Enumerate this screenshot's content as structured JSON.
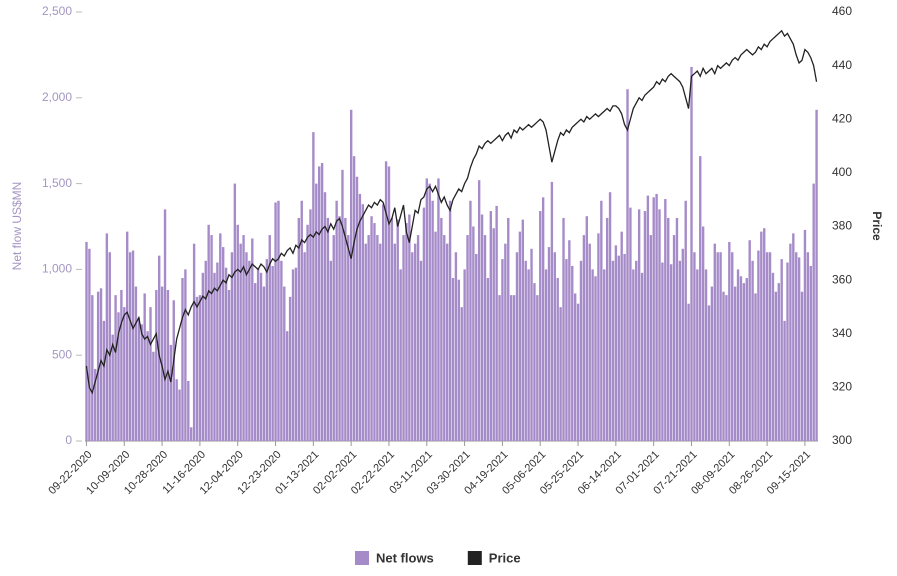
{
  "chart_data": {
    "type": "bar",
    "y_label": "Net flow US$MN",
    "y2_label": "Price",
    "ylim": [
      0,
      2500
    ],
    "yticks": [
      0,
      500,
      {
        "value": 1000,
        "label": "1,000"
      },
      {
        "value": 1500,
        "label": "1,500"
      },
      {
        "value": 2000,
        "label": "2,000"
      },
      {
        "value": 2500,
        "label": "2,500"
      }
    ],
    "y2lim": [
      300,
      460
    ],
    "y2ticks": [
      300,
      320,
      340,
      360,
      380,
      400,
      420,
      440,
      460
    ],
    "legend": "bottom",
    "categories": [
      "09-22-2020",
      null,
      null,
      null,
      null,
      null,
      null,
      null,
      null,
      null,
      null,
      null,
      null,
      "10-09-2020",
      null,
      null,
      null,
      null,
      null,
      null,
      null,
      null,
      null,
      null,
      null,
      null,
      "10-28-2020",
      null,
      null,
      null,
      null,
      null,
      null,
      null,
      null,
      null,
      null,
      null,
      null,
      "11-16-2020",
      null,
      null,
      null,
      null,
      null,
      null,
      null,
      null,
      null,
      null,
      null,
      null,
      "12-04-2020",
      null,
      null,
      null,
      null,
      null,
      null,
      null,
      null,
      null,
      null,
      null,
      null,
      "12-23-2020",
      null,
      null,
      null,
      null,
      null,
      null,
      null,
      null,
      null,
      null,
      null,
      null,
      "01-13-2021",
      null,
      null,
      null,
      null,
      null,
      null,
      null,
      null,
      null,
      null,
      null,
      null,
      "02-02-2021",
      null,
      null,
      null,
      null,
      null,
      null,
      null,
      null,
      null,
      null,
      null,
      null,
      "02-22-2021",
      null,
      null,
      null,
      null,
      null,
      null,
      null,
      null,
      null,
      null,
      null,
      null,
      "03-11-2021",
      null,
      null,
      null,
      null,
      null,
      null,
      null,
      null,
      null,
      null,
      null,
      null,
      "03-30-2021",
      null,
      null,
      null,
      null,
      null,
      null,
      null,
      null,
      null,
      null,
      null,
      null,
      "04-19-2021",
      null,
      null,
      null,
      null,
      null,
      null,
      null,
      null,
      null,
      null,
      null,
      null,
      "05-06-2021",
      null,
      null,
      null,
      null,
      null,
      null,
      null,
      null,
      null,
      null,
      null,
      null,
      "05-25-2021",
      null,
      null,
      null,
      null,
      null,
      null,
      null,
      null,
      null,
      null,
      null,
      null,
      "06-14-2021",
      null,
      null,
      null,
      null,
      null,
      null,
      null,
      null,
      null,
      null,
      null,
      null,
      "07-01-2021",
      null,
      null,
      null,
      null,
      null,
      null,
      null,
      null,
      null,
      null,
      null,
      null,
      "07-21-2021",
      null,
      null,
      null,
      null,
      null,
      null,
      null,
      null,
      null,
      null,
      null,
      null,
      "08-09-2021",
      null,
      null,
      null,
      null,
      null,
      null,
      null,
      null,
      null,
      null,
      null,
      null,
      "08-26-2021",
      null,
      null,
      null,
      null,
      null,
      null,
      null,
      null,
      null,
      null,
      null,
      null,
      "09-15-2021",
      null,
      null,
      null,
      null
    ],
    "series": [
      {
        "name": "Net flows",
        "type": "bar",
        "color": "#a68bc9",
        "axis": "y",
        "values": [
          1160,
          1120,
          850,
          420,
          870,
          890,
          700,
          1210,
          1100,
          620,
          850,
          750,
          880,
          780,
          1220,
          1100,
          1110,
          900,
          720,
          680,
          860,
          640,
          780,
          520,
          880,
          1080,
          900,
          1350,
          880,
          560,
          820,
          360,
          300,
          950,
          1000,
          350,
          80,
          1150,
          840,
          850,
          980,
          1050,
          1260,
          1200,
          980,
          1040,
          1210,
          1130,
          1010,
          880,
          1100,
          1500,
          1260,
          1150,
          1200,
          1100,
          1050,
          1180,
          920,
          1000,
          980,
          900,
          1060,
          1200,
          1020,
          1390,
          1400,
          1050,
          900,
          640,
          840,
          1000,
          1010,
          1300,
          1400,
          1100,
          1260,
          1350,
          1800,
          1500,
          1600,
          1620,
          1450,
          1300,
          1050,
          1200,
          1400,
          1310,
          1580,
          1300,
          1200,
          1930,
          1660,
          1540,
          1440,
          1380,
          1150,
          1200,
          1310,
          1270,
          1200,
          1150,
          1380,
          1630,
          1600,
          1300,
          1150,
          1290,
          1000,
          1200,
          1270,
          1320,
          1100,
          1150,
          1200,
          1050,
          1360,
          1530,
          1500,
          1400,
          1220,
          1530,
          1300,
          1200,
          1150,
          1400,
          950,
          1100,
          940,
          780,
          1000,
          1200,
          1400,
          1250,
          1090,
          1520,
          1320,
          1200,
          950,
          1340,
          1240,
          1370,
          850,
          1060,
          1150,
          1300,
          850,
          850,
          1100,
          1220,
          1290,
          1050,
          1000,
          1120,
          920,
          850,
          1340,
          1420,
          1000,
          1130,
          1510,
          1100,
          950,
          780,
          1300,
          1060,
          1170,
          1020,
          860,
          800,
          1050,
          1200,
          1310,
          1150,
          1000,
          960,
          1210,
          1400,
          1000,
          1300,
          1450,
          1050,
          1140,
          1080,
          1220,
          1090,
          2050,
          1360,
          1000,
          1050,
          1350,
          980,
          1340,
          1430,
          1200,
          1420,
          1440,
          1350,
          1040,
          1410,
          1300,
          1030,
          1200,
          1300,
          1050,
          1120,
          1400,
          800,
          2180,
          1100,
          1000,
          1660,
          1250,
          1000,
          790,
          900,
          1150,
          1100,
          1100,
          870,
          850,
          1160,
          1100,
          900,
          1000,
          960,
          920,
          950,
          1170,
          1050,
          860,
          1110,
          1220,
          1240,
          1100,
          1100,
          980,
          870,
          920,
          1060,
          700,
          1040,
          1150,
          1210,
          1100,
          1070,
          870,
          1230,
          1100,
          1020,
          1500,
          1930
        ]
      },
      {
        "name": "Price",
        "type": "line",
        "color": "#222222",
        "axis": "y2",
        "values": [
          328,
          320,
          318,
          322,
          326,
          330,
          328,
          334,
          332,
          336,
          333,
          340,
          344,
          347,
          348,
          345,
          342,
          344,
          346,
          340,
          338,
          339,
          336,
          338,
          340,
          332,
          328,
          323,
          326,
          322,
          330,
          338,
          342,
          346,
          349,
          347,
          350,
          352,
          350,
          352,
          354,
          353,
          356,
          355,
          357,
          356,
          358,
          360,
          359,
          362,
          361,
          363,
          364,
          363,
          365,
          362,
          364,
          366,
          365,
          364,
          366,
          365,
          363,
          366,
          368,
          367,
          368,
          370,
          369,
          371,
          372,
          370,
          373,
          372,
          375,
          374,
          376,
          377,
          376,
          378,
          377,
          379,
          380,
          378,
          381,
          379,
          382,
          383,
          380,
          376,
          372,
          368,
          374,
          379,
          382,
          384,
          386,
          388,
          387,
          389,
          388,
          390,
          389,
          385,
          381,
          383,
          387,
          380,
          384,
          388,
          378,
          374,
          380,
          386,
          385,
          390,
          391,
          394,
          395,
          393,
          395,
          392,
          389,
          391,
          388,
          386,
          390,
          392,
          394,
          393,
          396,
          398,
          402,
          405,
          407,
          410,
          409,
          411,
          412,
          411,
          412,
          413,
          414,
          412,
          414,
          415,
          413,
          416,
          415,
          417,
          416,
          417,
          418,
          417,
          418,
          419,
          420,
          419,
          416,
          410,
          404,
          408,
          412,
          415,
          414,
          416,
          415,
          417,
          418,
          419,
          420,
          419,
          421,
          420,
          421,
          422,
          421,
          422,
          423,
          424,
          423,
          425,
          425,
          424,
          422,
          418,
          416,
          420,
          424,
          426,
          428,
          427,
          429,
          430,
          431,
          432,
          434,
          433,
          435,
          434,
          436,
          437,
          436,
          435,
          434,
          432,
          428,
          424,
          436,
          437,
          438,
          436,
          439,
          437,
          438,
          439,
          437,
          440,
          439,
          440,
          441,
          440,
          442,
          443,
          442,
          444,
          445,
          446,
          445,
          444,
          445,
          447,
          446,
          448,
          447,
          449,
          450,
          451,
          452,
          453,
          451,
          452,
          450,
          448,
          444,
          441,
          442,
          446,
          445,
          443,
          440,
          434
        ]
      }
    ]
  }
}
